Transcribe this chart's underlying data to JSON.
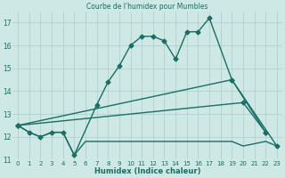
{
  "title": "Courbe de l'humidex pour Mumbles",
  "xlabel": "Humidex (Indice chaleur)",
  "xlim": [
    -0.5,
    23.5
  ],
  "ylim": [
    11,
    17.5
  ],
  "yticks": [
    11,
    12,
    13,
    14,
    15,
    16,
    17
  ],
  "xticks": [
    0,
    1,
    2,
    3,
    4,
    5,
    6,
    7,
    8,
    9,
    10,
    11,
    12,
    13,
    14,
    15,
    16,
    17,
    18,
    19,
    20,
    21,
    22,
    23
  ],
  "bg_color": "#cde8e5",
  "grid_color": "#aacfcc",
  "line_color": "#1a6e63",
  "lines": [
    {
      "x": [
        0,
        1,
        2,
        3,
        4,
        5,
        7,
        8,
        9,
        10,
        11,
        12,
        13,
        14,
        15,
        16,
        17,
        19,
        22
      ],
      "y": [
        12.5,
        12.2,
        12.0,
        12.2,
        12.2,
        11.2,
        13.4,
        14.4,
        15.1,
        16.0,
        16.4,
        16.4,
        16.2,
        15.4,
        16.6,
        16.6,
        17.2,
        14.5,
        12.2
      ],
      "marker": "D",
      "markersize": 2.5,
      "linewidth": 1.0
    },
    {
      "x": [
        0,
        1,
        2,
        3,
        4,
        5,
        6,
        7,
        8,
        9,
        10,
        11,
        12,
        13,
        14,
        15,
        16,
        17,
        18,
        19,
        20,
        22,
        23
      ],
      "y": [
        12.5,
        12.2,
        12.0,
        12.2,
        12.2,
        11.2,
        11.8,
        11.8,
        11.8,
        11.8,
        11.8,
        11.8,
        11.8,
        11.8,
        11.8,
        11.8,
        11.8,
        11.8,
        11.8,
        11.8,
        11.6,
        11.8,
        11.6
      ],
      "marker": null,
      "markersize": 0,
      "linewidth": 1.0
    },
    {
      "x": [
        0,
        19,
        23
      ],
      "y": [
        12.5,
        14.5,
        11.6
      ],
      "marker": "D",
      "markersize": 2.5,
      "linewidth": 1.0
    },
    {
      "x": [
        0,
        20,
        22
      ],
      "y": [
        12.5,
        13.5,
        12.2
      ],
      "marker": "D",
      "markersize": 2.5,
      "linewidth": 1.0
    }
  ]
}
